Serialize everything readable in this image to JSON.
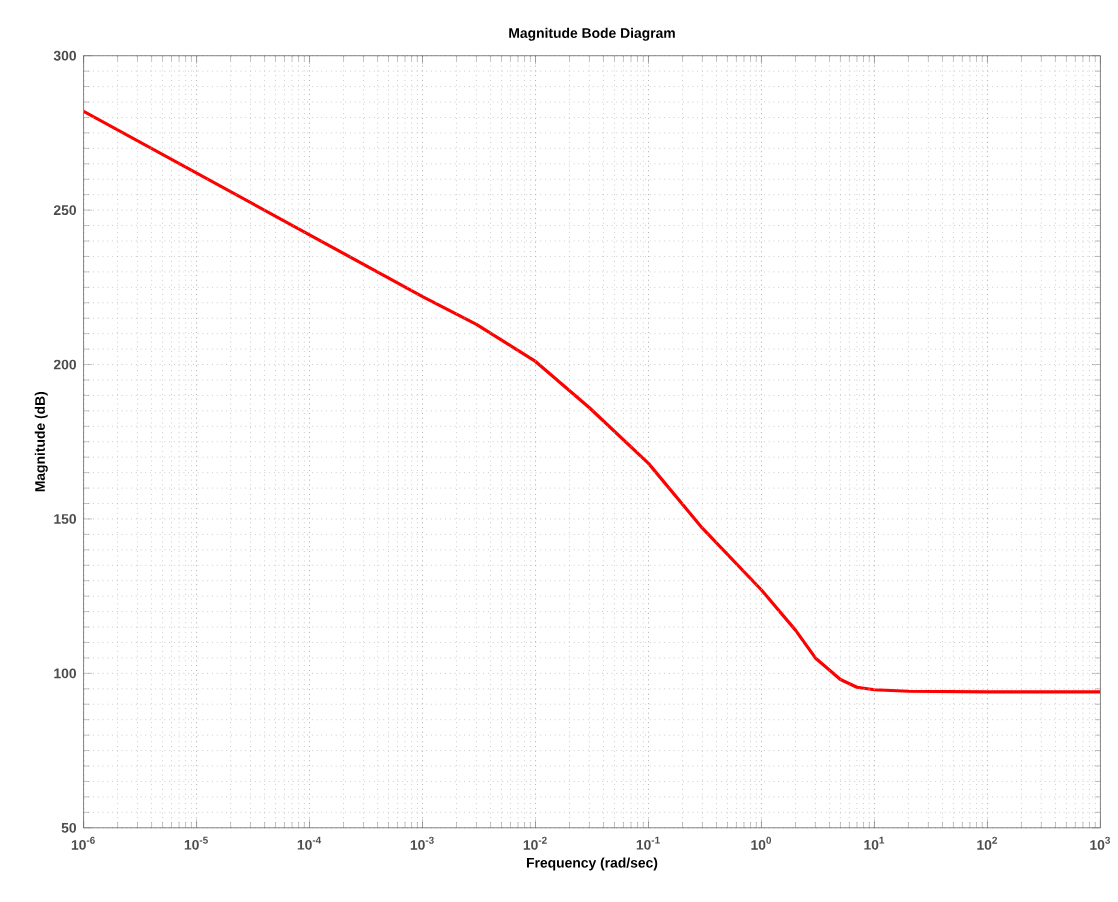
{
  "chart_data": {
    "type": "line",
    "title": "Magnitude Bode Diagram",
    "xlabel": "Frequency  (rad/sec)",
    "ylabel": "Magnitude (dB)",
    "log": "x",
    "grid": true,
    "line_style": "solid",
    "marker": "none",
    "xlim": [
      1e-06,
      1000
    ],
    "ylim": [
      50,
      300
    ],
    "xticks": [
      {
        "value": 1e-06,
        "label": "10$^{-6}$"
      },
      {
        "value": 1e-05,
        "label": "10$^{-5}$"
      },
      {
        "value": 0.0001,
        "label": "10$^{-4}$"
      },
      {
        "value": 0.001,
        "label": "10$^{-3}$"
      },
      {
        "value": 0.01,
        "label": "10$^{-2}$"
      },
      {
        "value": 0.1,
        "label": "10$^{-1}$"
      },
      {
        "value": 1,
        "label": "10$^{0}$"
      },
      {
        "value": 10,
        "label": "10$^{1}$"
      },
      {
        "value": 100,
        "label": "10$^{2}$"
      },
      {
        "value": 1000,
        "label": "10$^{3}$"
      }
    ],
    "yticks": [
      50,
      100,
      150,
      200,
      250,
      300
    ],
    "series": [
      {
        "color": "#ff0000",
        "x": [
          1e-06,
          1e-05,
          0.0001,
          0.001,
          0.003,
          0.01,
          0.03,
          0.1,
          0.3,
          1,
          2,
          3,
          5,
          7,
          10,
          20,
          100,
          1000
        ],
        "values": [
          282,
          262,
          242,
          222,
          213,
          201,
          186,
          168,
          147,
          127,
          114,
          105,
          98,
          95.5,
          94.7,
          94.2,
          94,
          94
        ]
      }
    ]
  }
}
